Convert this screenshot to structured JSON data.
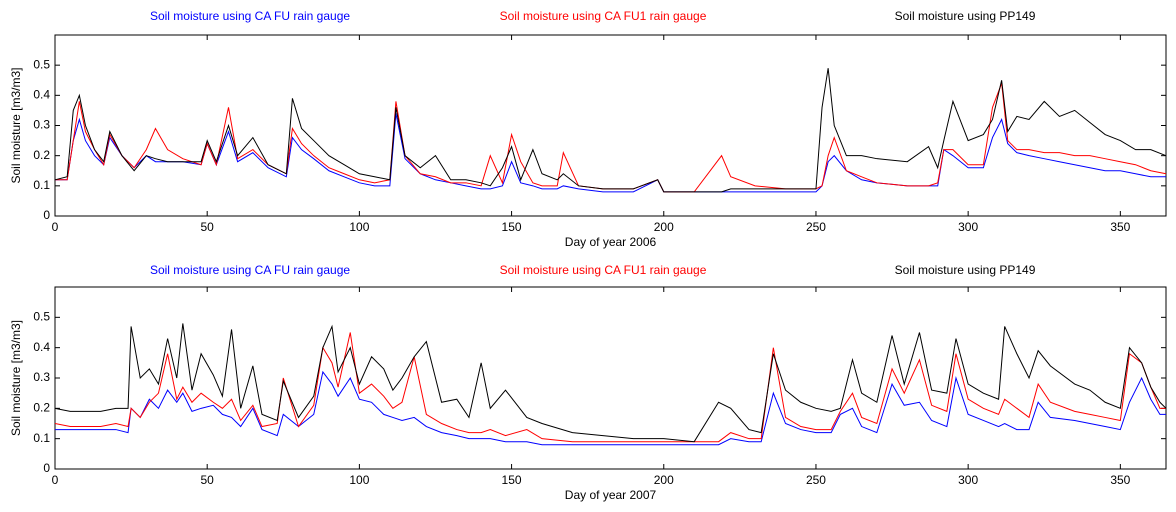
{
  "chart_data": [
    {
      "type": "line",
      "xlabel": "Day of year 2006",
      "ylabel": "Soil moisture [m3/m3]",
      "xlim": [
        0,
        365
      ],
      "xticks": [
        0,
        50,
        100,
        150,
        200,
        250,
        300,
        350
      ],
      "ylim": [
        0,
        0.6
      ],
      "yticks": [
        0,
        0.1,
        0.2,
        0.3,
        0.4,
        0.5
      ],
      "grid": false,
      "x": [
        0,
        4,
        6,
        8,
        10,
        13,
        16,
        18,
        22,
        26,
        30,
        33,
        37,
        42,
        48,
        50,
        53,
        57,
        60,
        65,
        70,
        76,
        78,
        81,
        85,
        90,
        95,
        100,
        105,
        110,
        112,
        115,
        120,
        125,
        130,
        135,
        140,
        143,
        147,
        150,
        153,
        157,
        160,
        165,
        167,
        172,
        180,
        190,
        198,
        200,
        210,
        219,
        222,
        230,
        240,
        250,
        252,
        254,
        256,
        260,
        265,
        270,
        280,
        287,
        290,
        292,
        295,
        300,
        305,
        308,
        311,
        313,
        316,
        320,
        325,
        330,
        335,
        340,
        345,
        350,
        355,
        360,
        365
      ],
      "series": [
        {
          "name": "Soil moisture using CA FU rain gauge",
          "color": "#0000ff",
          "values": [
            0.12,
            0.12,
            0.25,
            0.32,
            0.25,
            0.2,
            0.17,
            0.26,
            0.2,
            0.16,
            0.2,
            0.18,
            0.18,
            0.18,
            0.17,
            0.24,
            0.17,
            0.28,
            0.18,
            0.21,
            0.16,
            0.13,
            0.26,
            0.22,
            0.19,
            0.15,
            0.13,
            0.11,
            0.1,
            0.1,
            0.34,
            0.19,
            0.14,
            0.12,
            0.11,
            0.1,
            0.09,
            0.09,
            0.1,
            0.18,
            0.11,
            0.1,
            0.09,
            0.09,
            0.1,
            0.09,
            0.08,
            0.08,
            0.12,
            0.08,
            0.08,
            0.08,
            0.08,
            0.08,
            0.08,
            0.08,
            0.1,
            0.18,
            0.2,
            0.15,
            0.12,
            0.11,
            0.1,
            0.1,
            0.1,
            0.22,
            0.2,
            0.16,
            0.16,
            0.26,
            0.32,
            0.24,
            0.21,
            0.2,
            0.19,
            0.18,
            0.17,
            0.16,
            0.15,
            0.15,
            0.14,
            0.13,
            0.13
          ]
        },
        {
          "name": "Soil moisture using CA FU1 rain gauge",
          "color": "#ff0000",
          "values": [
            0.12,
            0.12,
            0.25,
            0.38,
            0.28,
            0.22,
            0.17,
            0.27,
            0.2,
            0.16,
            0.22,
            0.29,
            0.22,
            0.19,
            0.17,
            0.24,
            0.17,
            0.36,
            0.19,
            0.22,
            0.17,
            0.14,
            0.29,
            0.24,
            0.2,
            0.16,
            0.14,
            0.12,
            0.11,
            0.12,
            0.38,
            0.2,
            0.14,
            0.13,
            0.11,
            0.11,
            0.1,
            0.2,
            0.11,
            0.27,
            0.18,
            0.11,
            0.1,
            0.1,
            0.21,
            0.1,
            0.09,
            0.09,
            0.12,
            0.08,
            0.08,
            0.2,
            0.13,
            0.1,
            0.09,
            0.09,
            0.1,
            0.2,
            0.26,
            0.15,
            0.13,
            0.11,
            0.1,
            0.1,
            0.11,
            0.22,
            0.22,
            0.17,
            0.17,
            0.36,
            0.44,
            0.25,
            0.22,
            0.22,
            0.21,
            0.21,
            0.2,
            0.2,
            0.19,
            0.18,
            0.17,
            0.15,
            0.14
          ]
        },
        {
          "name": "Soil moisture using PP149",
          "color": "#000000",
          "values": [
            0.12,
            0.13,
            0.35,
            0.4,
            0.3,
            0.22,
            0.18,
            0.28,
            0.2,
            0.15,
            0.2,
            0.19,
            0.18,
            0.18,
            0.18,
            0.25,
            0.18,
            0.3,
            0.2,
            0.26,
            0.17,
            0.14,
            0.39,
            0.29,
            0.25,
            0.2,
            0.17,
            0.14,
            0.13,
            0.12,
            0.36,
            0.2,
            0.16,
            0.2,
            0.12,
            0.12,
            0.11,
            0.1,
            0.16,
            0.23,
            0.12,
            0.22,
            0.14,
            0.12,
            0.14,
            0.1,
            0.09,
            0.09,
            0.12,
            0.08,
            0.08,
            0.08,
            0.09,
            0.09,
            0.09,
            0.09,
            0.36,
            0.49,
            0.3,
            0.2,
            0.2,
            0.19,
            0.18,
            0.23,
            0.16,
            0.25,
            0.38,
            0.25,
            0.27,
            0.32,
            0.45,
            0.28,
            0.33,
            0.32,
            0.38,
            0.33,
            0.35,
            0.31,
            0.27,
            0.25,
            0.22,
            0.22,
            0.2
          ]
        }
      ]
    },
    {
      "type": "line",
      "xlabel": "Day of year 2007",
      "ylabel": "Soil moisture [m3/m3]",
      "xlim": [
        0,
        365
      ],
      "xticks": [
        0,
        50,
        100,
        150,
        200,
        250,
        300,
        350
      ],
      "ylim": [
        0,
        0.6
      ],
      "yticks": [
        0,
        0.1,
        0.2,
        0.3,
        0.4,
        0.5
      ],
      "grid": false,
      "x": [
        0,
        5,
        10,
        15,
        20,
        24,
        25,
        28,
        31,
        34,
        37,
        40,
        42,
        45,
        48,
        52,
        55,
        58,
        61,
        65,
        68,
        73,
        75,
        80,
        85,
        88,
        91,
        93,
        97,
        100,
        104,
        108,
        111,
        114,
        118,
        122,
        127,
        132,
        136,
        140,
        143,
        148,
        155,
        160,
        170,
        180,
        190,
        200,
        210,
        218,
        222,
        228,
        232,
        236,
        240,
        245,
        250,
        255,
        258,
        262,
        265,
        270,
        275,
        279,
        284,
        288,
        293,
        296,
        300,
        305,
        310,
        312,
        316,
        320,
        323,
        327,
        335,
        340,
        345,
        350,
        353,
        357,
        360,
        363,
        365
      ],
      "series": [
        {
          "name": "Soil moisture using CA FU rain gauge",
          "color": "#0000ff",
          "values": [
            0.13,
            0.13,
            0.13,
            0.13,
            0.13,
            0.12,
            0.2,
            0.17,
            0.23,
            0.2,
            0.26,
            0.22,
            0.25,
            0.19,
            0.2,
            0.21,
            0.18,
            0.17,
            0.14,
            0.2,
            0.13,
            0.11,
            0.18,
            0.14,
            0.18,
            0.32,
            0.28,
            0.24,
            0.3,
            0.23,
            0.22,
            0.18,
            0.17,
            0.16,
            0.17,
            0.14,
            0.12,
            0.11,
            0.1,
            0.1,
            0.1,
            0.09,
            0.09,
            0.08,
            0.08,
            0.08,
            0.08,
            0.08,
            0.08,
            0.08,
            0.1,
            0.09,
            0.09,
            0.25,
            0.15,
            0.13,
            0.12,
            0.12,
            0.18,
            0.2,
            0.14,
            0.12,
            0.28,
            0.21,
            0.22,
            0.16,
            0.14,
            0.3,
            0.18,
            0.16,
            0.14,
            0.15,
            0.13,
            0.13,
            0.22,
            0.17,
            0.16,
            0.15,
            0.14,
            0.13,
            0.22,
            0.3,
            0.23,
            0.18,
            0.18
          ]
        },
        {
          "name": "Soil moisture using CA FU1 rain gauge",
          "color": "#ff0000",
          "values": [
            0.15,
            0.14,
            0.14,
            0.14,
            0.15,
            0.14,
            0.2,
            0.17,
            0.22,
            0.25,
            0.38,
            0.23,
            0.27,
            0.22,
            0.25,
            0.22,
            0.2,
            0.23,
            0.16,
            0.21,
            0.14,
            0.15,
            0.3,
            0.14,
            0.21,
            0.4,
            0.35,
            0.27,
            0.45,
            0.25,
            0.28,
            0.24,
            0.2,
            0.22,
            0.37,
            0.18,
            0.15,
            0.13,
            0.12,
            0.12,
            0.13,
            0.11,
            0.13,
            0.1,
            0.09,
            0.09,
            0.09,
            0.09,
            0.09,
            0.09,
            0.12,
            0.1,
            0.1,
            0.4,
            0.17,
            0.14,
            0.13,
            0.13,
            0.19,
            0.25,
            0.17,
            0.15,
            0.33,
            0.25,
            0.36,
            0.21,
            0.19,
            0.38,
            0.23,
            0.2,
            0.18,
            0.23,
            0.2,
            0.17,
            0.28,
            0.22,
            0.19,
            0.18,
            0.17,
            0.16,
            0.38,
            0.35,
            0.27,
            0.2,
            0.2
          ]
        },
        {
          "name": "Soil moisture using PP149",
          "color": "#000000",
          "values": [
            0.2,
            0.19,
            0.19,
            0.19,
            0.2,
            0.2,
            0.47,
            0.3,
            0.33,
            0.28,
            0.43,
            0.3,
            0.48,
            0.26,
            0.38,
            0.31,
            0.24,
            0.46,
            0.2,
            0.34,
            0.18,
            0.16,
            0.29,
            0.17,
            0.24,
            0.4,
            0.47,
            0.32,
            0.4,
            0.28,
            0.37,
            0.33,
            0.26,
            0.3,
            0.37,
            0.42,
            0.22,
            0.23,
            0.17,
            0.35,
            0.2,
            0.26,
            0.17,
            0.15,
            0.12,
            0.11,
            0.1,
            0.1,
            0.09,
            0.22,
            0.2,
            0.13,
            0.12,
            0.38,
            0.26,
            0.22,
            0.2,
            0.19,
            0.2,
            0.36,
            0.25,
            0.22,
            0.44,
            0.28,
            0.45,
            0.26,
            0.25,
            0.43,
            0.28,
            0.25,
            0.23,
            0.47,
            0.38,
            0.3,
            0.39,
            0.34,
            0.28,
            0.26,
            0.22,
            0.2,
            0.4,
            0.35,
            0.27,
            0.22,
            0.2
          ]
        }
      ]
    }
  ]
}
